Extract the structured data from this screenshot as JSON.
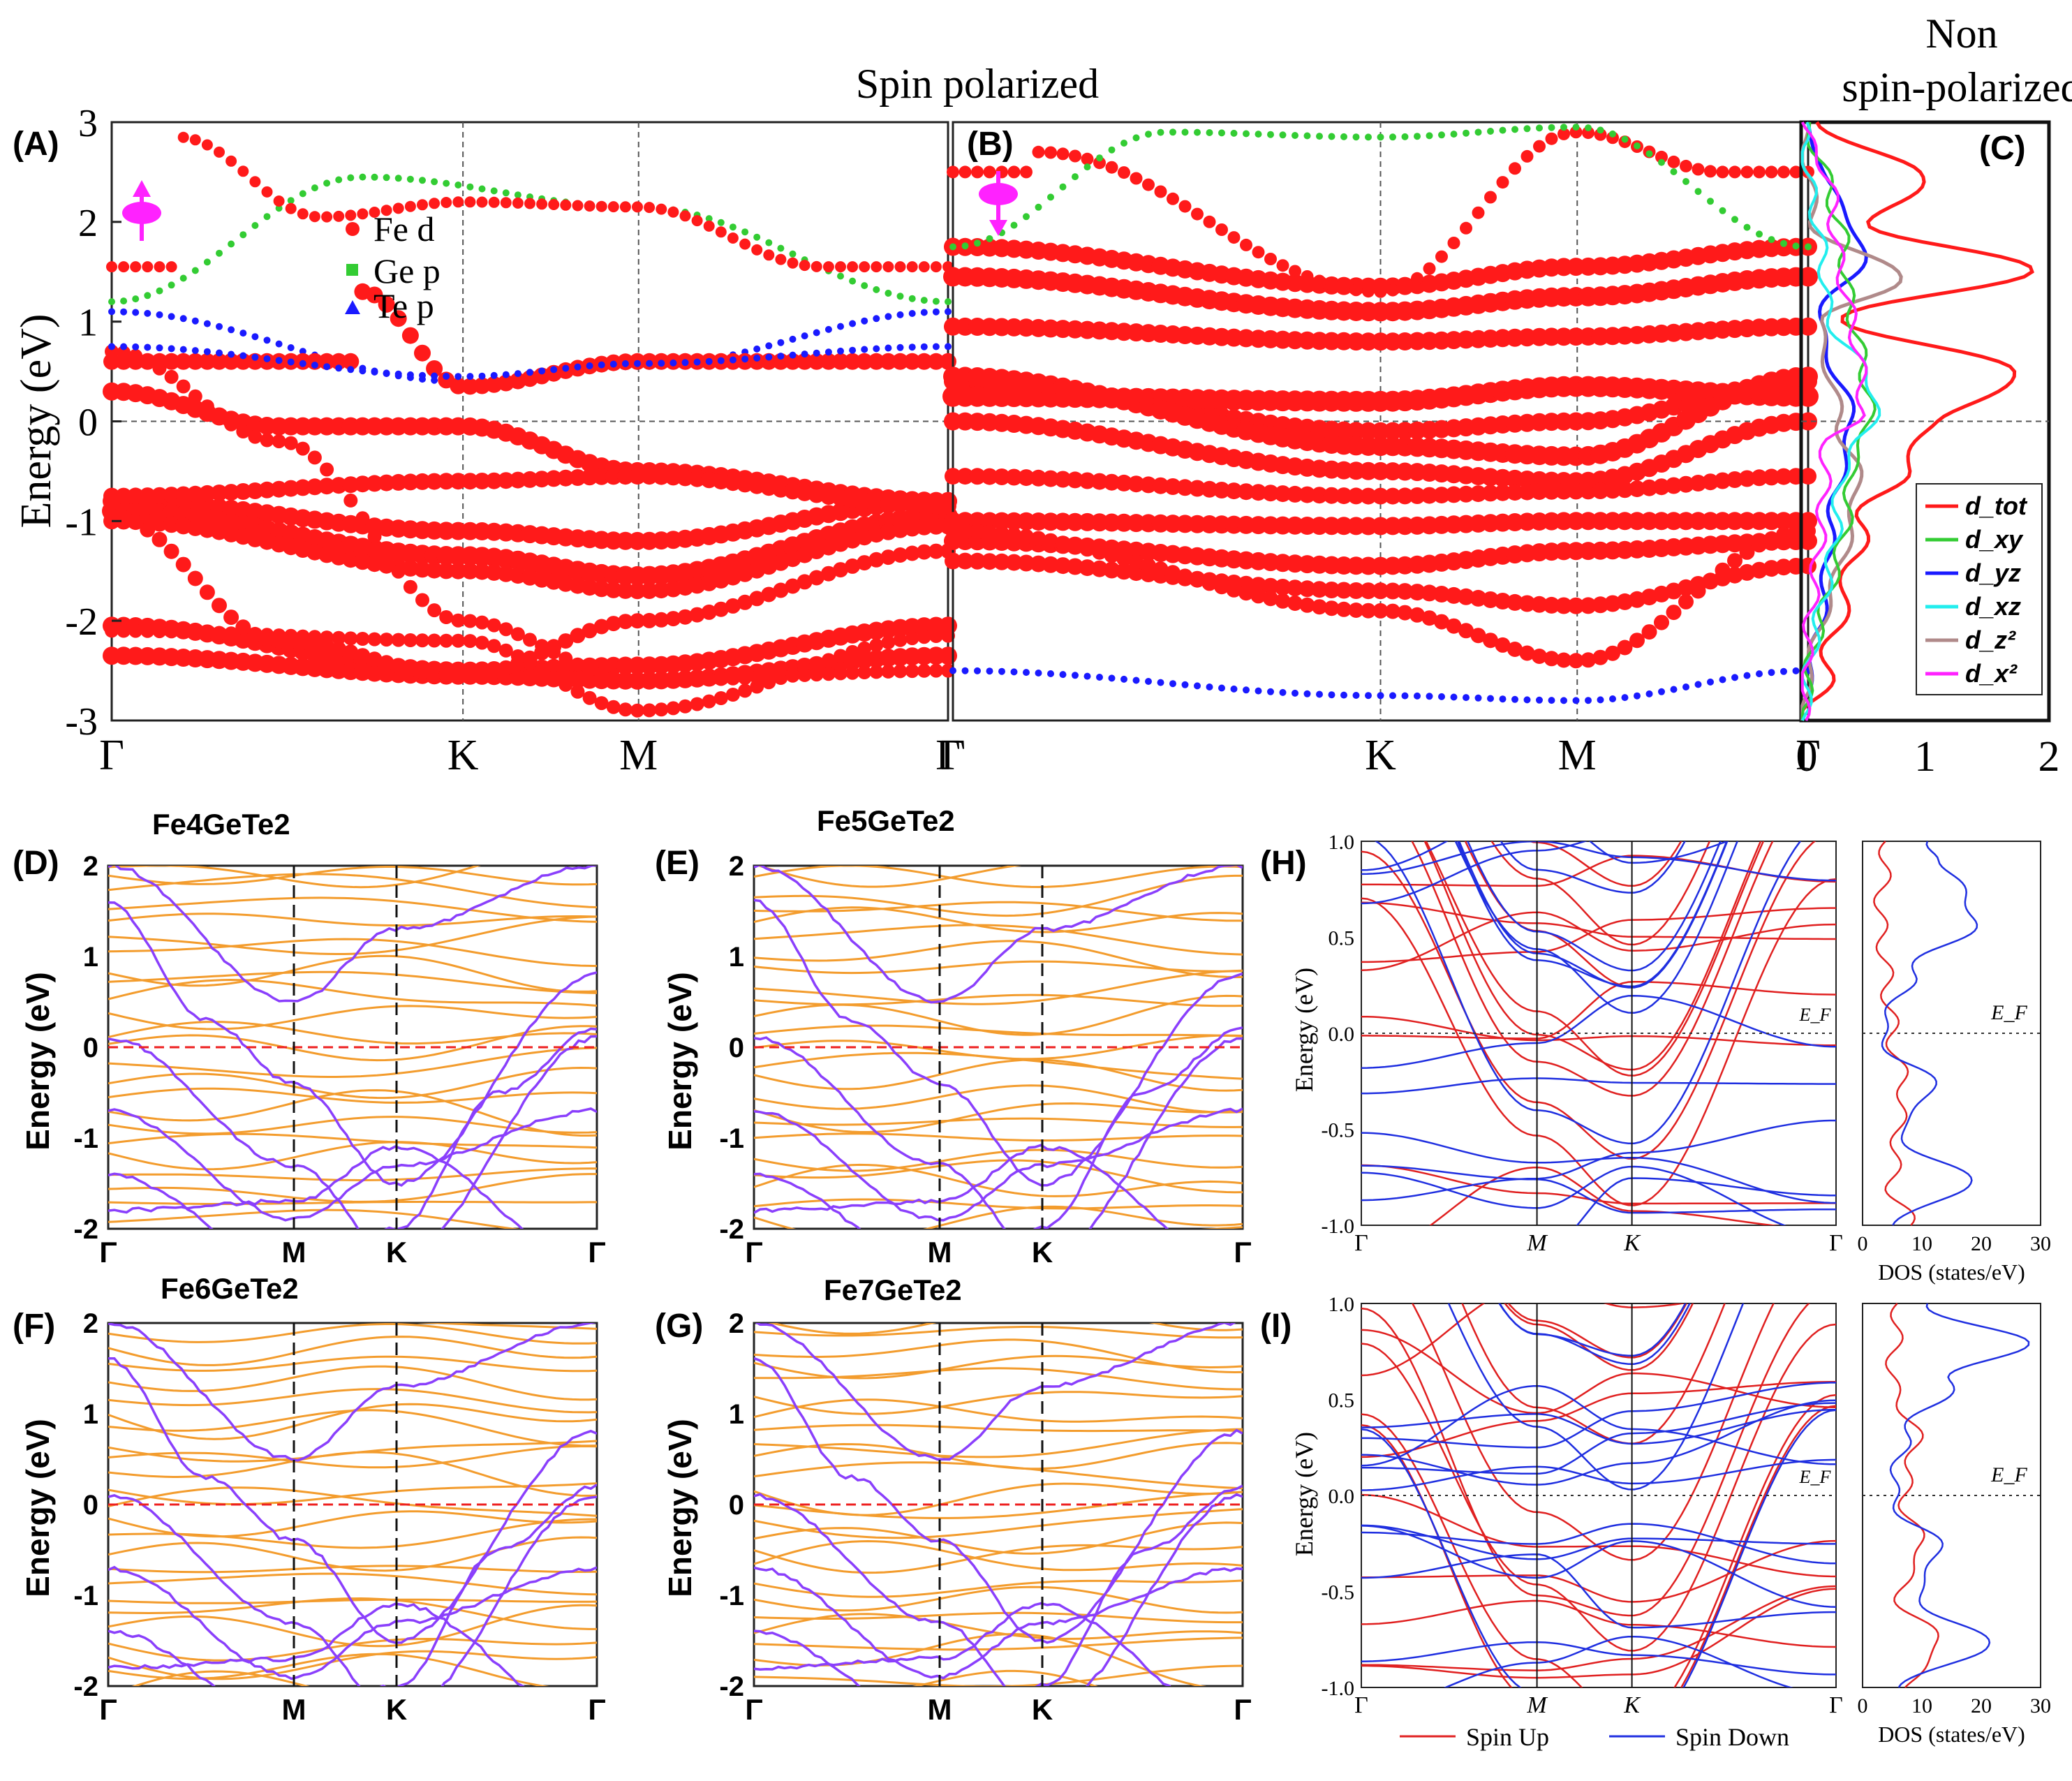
{
  "figure": {
    "header_spin": "Spin polarized",
    "header_nonspin_line1": "Non",
    "header_nonspin_line2": "spin-polarized"
  },
  "colors": {
    "fe_d": "#ff1a1a",
    "ge_p": "#33cc33",
    "te_p": "#1a1aff",
    "orange": "#f39c2d",
    "purple": "#8a3ffc",
    "spin_up": "#e02020",
    "spin_down": "#1f2fe0",
    "magenta": "#ff22ff"
  },
  "chart_data": [
    {
      "panel": "(A)",
      "type": "scatter",
      "title": "",
      "ylabel": "Energy (eV)",
      "ylim": [
        -3,
        3
      ],
      "yticks": [
        "3",
        "2",
        "1",
        "0",
        "-1",
        "-2",
        "-3"
      ],
      "kpath": [
        "Γ",
        "K",
        "M",
        "Γ"
      ],
      "kpos": [
        0,
        0.42,
        0.63,
        1
      ],
      "legend": [
        "Fe d",
        "Ge p",
        "Te p"
      ],
      "series": [
        {
          "name": "Fe d",
          "x": [
            0,
            0.2,
            0.42,
            0.63,
            1
          ],
          "y": [
            0.3,
            -0.05,
            -0.05,
            -0.5,
            -0.8
          ]
        },
        {
          "name": "Fe d",
          "x": [
            0,
            0.42,
            0.63,
            1
          ],
          "y": [
            -0.8,
            -1.1,
            -1.2,
            -0.8
          ]
        },
        {
          "name": "Fe d",
          "x": [
            0,
            0.42,
            0.63,
            1
          ],
          "y": [
            -2.05,
            -2.5,
            -2.45,
            -2.05
          ]
        },
        {
          "name": "Te p",
          "x": [
            0,
            0.42,
            0.63,
            1
          ],
          "y": [
            1.1,
            0.4,
            0.55,
            1.1
          ]
        },
        {
          "name": "Ge p",
          "x": [
            0,
            0.3,
            0.63,
            1
          ],
          "y": [
            1.2,
            2.45,
            2.15,
            1.2
          ]
        }
      ]
    },
    {
      "panel": "(B)",
      "type": "scatter",
      "ylim": [
        -3,
        3
      ],
      "kpath": [
        "Γ",
        "K",
        "M",
        "Γ"
      ],
      "kpos": [
        0,
        0.5,
        0.73,
        1
      ],
      "series": [
        {
          "name": "Fe d",
          "x": [
            0,
            0.5,
            0.73,
            1
          ],
          "y": [
            1.75,
            1.35,
            1.55,
            1.75
          ]
        },
        {
          "name": "Fe d",
          "x": [
            0,
            0.5,
            0.73,
            1
          ],
          "y": [
            0.4,
            -0.1,
            0.0,
            0.4
          ]
        },
        {
          "name": "Fe d",
          "x": [
            0,
            0.5,
            0.73,
            1
          ],
          "y": [
            -1.0,
            -1.05,
            -1.0,
            -1.0
          ]
        },
        {
          "name": "Te p",
          "x": [
            0,
            0.5,
            0.73,
            1
          ],
          "y": [
            -2.5,
            -2.75,
            -2.8,
            -2.5
          ]
        }
      ]
    },
    {
      "panel": "(C)",
      "type": "line",
      "xlim": [
        0,
        2
      ],
      "xticks": [
        "0",
        "1",
        "2"
      ],
      "legend": [
        "d_tot",
        "d_xy",
        "d_yz",
        "d_xz",
        "d_z²",
        "d_x²"
      ],
      "series": [
        {
          "name": "d_tot",
          "y": [
            -3,
            -2.5,
            -2,
            -1.5,
            -1,
            -0.5,
            0,
            0.5,
            1,
            1.5,
            2,
            2.5,
            3
          ],
          "values": [
            0.05,
            0.2,
            0.3,
            0.4,
            0.5,
            0.8,
            1.1,
            1.8,
            0.3,
            1.8,
            0.6,
            1.0,
            0.05
          ]
        },
        {
          "name": "d_yz",
          "y": [
            -3,
            -1.5,
            -1,
            0,
            1,
            1.7,
            2.5,
            3
          ],
          "values": [
            0.02,
            0.2,
            0.25,
            0.4,
            0.15,
            0.5,
            0.2,
            0.02
          ]
        },
        {
          "name": "d_z²",
          "y": [
            -3,
            -0.5,
            0,
            1,
            1.4,
            2,
            3
          ],
          "values": [
            0.02,
            0.45,
            0.3,
            0.15,
            0.8,
            0.1,
            0.02
          ]
        }
      ]
    },
    {
      "panel": "(D)",
      "type": "line",
      "title": "Fe4GeTe2",
      "ylabel": "Energy (eV)",
      "ylim": [
        -2,
        2
      ],
      "yticks": [
        "2",
        "1",
        "0",
        "-1",
        "-2"
      ],
      "kpath": [
        "Γ",
        "M",
        "K",
        "Γ"
      ],
      "kpos": [
        0,
        0.38,
        0.59,
        1
      ]
    },
    {
      "panel": "(E)",
      "type": "line",
      "title": "Fe5GeTe2",
      "ylabel": "Energy (eV)",
      "ylim": [
        -2,
        2
      ],
      "yticks": [
        "2",
        "1",
        "0",
        "-1",
        "-2"
      ],
      "kpath": [
        "Γ",
        "M",
        "K",
        "Γ"
      ],
      "kpos": [
        0,
        0.38,
        0.59,
        1
      ]
    },
    {
      "panel": "(F)",
      "type": "line",
      "title": "Fe6GeTe2",
      "ylabel": "Energy (eV)",
      "ylim": [
        -2,
        2
      ],
      "yticks": [
        "2",
        "1",
        "0",
        "-1",
        "-2"
      ],
      "kpath": [
        "Γ",
        "M",
        "K",
        "Γ"
      ],
      "kpos": [
        0,
        0.38,
        0.59,
        1
      ]
    },
    {
      "panel": "(G)",
      "type": "line",
      "title": "Fe7GeTe2",
      "ylabel": "Energy (eV)",
      "ylim": [
        -2,
        2
      ],
      "yticks": [
        "2",
        "1",
        "0",
        "-1",
        "-2"
      ],
      "kpath": [
        "Γ",
        "M",
        "K",
        "Γ"
      ],
      "kpos": [
        0,
        0.38,
        0.59,
        1
      ]
    },
    {
      "panel": "(H)",
      "type": "line",
      "ylabel": "Energy (eV)",
      "ylim": [
        -1,
        1
      ],
      "yticks": [
        "1.0",
        "0.5",
        "0.0",
        "-0.5",
        "-1.0"
      ],
      "kpath": [
        "Γ",
        "M",
        "K",
        "Γ"
      ],
      "kpos": [
        0,
        0.37,
        0.57,
        1
      ],
      "fermi_label": "E_F",
      "dos_xlabel": "DOS (states/eV)",
      "dos_xticks": [
        "0",
        "10",
        "20",
        "30"
      ],
      "series": [
        {
          "name": "Spin Up",
          "dos_y": [
            -1,
            -0.8,
            -0.5,
            -0.3,
            0,
            0.3,
            0.6,
            1
          ],
          "dos": [
            8,
            5,
            6,
            7,
            5,
            4,
            3,
            4
          ]
        },
        {
          "name": "Spin Down",
          "dos_y": [
            -1,
            -0.8,
            -0.5,
            -0.3,
            0,
            0.3,
            0.6,
            0.9,
            1
          ],
          "dos": [
            4,
            18,
            6,
            12,
            3,
            8,
            19,
            14,
            10
          ]
        }
      ]
    },
    {
      "panel": "(I)",
      "type": "line",
      "ylabel": "Energy (eV)",
      "ylim": [
        -1,
        1
      ],
      "yticks": [
        "1.0",
        "0.5",
        "0.0",
        "-0.5",
        "-1.0"
      ],
      "kpath": [
        "Γ",
        "M",
        "K",
        "Γ"
      ],
      "kpos": [
        0,
        0.37,
        0.57,
        1
      ],
      "fermi_label": "E_F",
      "dos_xlabel": "DOS (states/eV)",
      "dos_xticks": [
        "0",
        "10",
        "20",
        "30"
      ],
      "legend": [
        "Spin Up",
        "Spin Down"
      ],
      "series": [
        {
          "name": "Spin Up",
          "dos_y": [
            -1,
            -0.8,
            -0.5,
            -0.3,
            0,
            0.3,
            0.6,
            1
          ],
          "dos": [
            7,
            13,
            6,
            10,
            7,
            9,
            5,
            6
          ]
        },
        {
          "name": "Spin Down",
          "dos_y": [
            -1,
            -0.8,
            -0.5,
            -0.3,
            0,
            0.3,
            0.6,
            0.8,
            1
          ],
          "dos": [
            5,
            21,
            9,
            13,
            5,
            7,
            15,
            27,
            10
          ]
        }
      ]
    }
  ],
  "labels": {
    "A": "(A)",
    "B": "(B)",
    "C": "(C)",
    "D": "(D)",
    "E": "(E)",
    "F": "(F)",
    "G": "(G)",
    "H": "(H)",
    "I": "(I)",
    "fe_d": "Fe d",
    "ge_p": "Ge p",
    "te_p": "Te p",
    "energy_ev": "Energy (eV)",
    "spin_up": "Spin Up",
    "spin_down": "Spin Down",
    "dos": "DOS (states/eV)",
    "d_tot": "d_tot",
    "d_xy": "d_xy",
    "d_yz": "d_yz",
    "d_xz": "d_xz",
    "d_z2": "d_z²",
    "d_x2": "d_x²",
    "ef": "E_F",
    "gamma": "Γ",
    "K": "K",
    "M": "M",
    "t_fe4": "Fe4GeTe2",
    "t_fe5": "Fe5GeTe2",
    "t_fe6": "Fe6GeTe2",
    "t_fe7": "Fe7GeTe2"
  }
}
